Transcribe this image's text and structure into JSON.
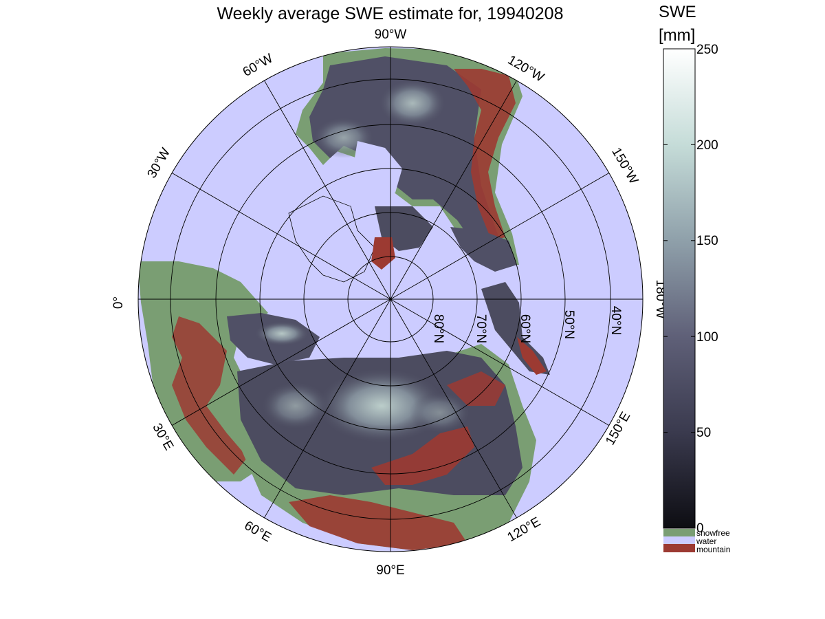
{
  "title": "Weekly average SWE estimate for, 19940208",
  "colorbar": {
    "title_line1": "SWE",
    "title_line2": "[mm]",
    "ticks": [
      "250",
      "200",
      "150",
      "100",
      "50",
      "0"
    ],
    "tick_values": [
      250,
      200,
      150,
      100,
      50,
      0
    ],
    "range": [
      0,
      250
    ],
    "colors": [
      "#0d0d12",
      "#3a3a4e",
      "#5f6078",
      "#8fa0aa",
      "#c5dcd8",
      "#ffffff"
    ]
  },
  "legend": [
    {
      "label": "snowfree",
      "color": "#7a9e73"
    },
    {
      "label": "water",
      "color": "#ccccff"
    },
    {
      "label": "mountain",
      "color": "#9c3a32"
    }
  ],
  "map": {
    "projection": "north polar stereographic",
    "ocean_color": "#ccccff",
    "snowfree_color": "#7a9e73",
    "mountain_color": "#9c3a32",
    "snow_color": "#4c4c60",
    "longitude_labels": [
      "90°W",
      "120°W",
      "150°W",
      "180°W",
      "150°E",
      "120°E",
      "90°E",
      "60°E",
      "30°E",
      "0°",
      "30°W",
      "60°W"
    ],
    "latitude_labels": [
      "80°N",
      "70°N",
      "60°N",
      "50°N",
      "40°N"
    ]
  }
}
